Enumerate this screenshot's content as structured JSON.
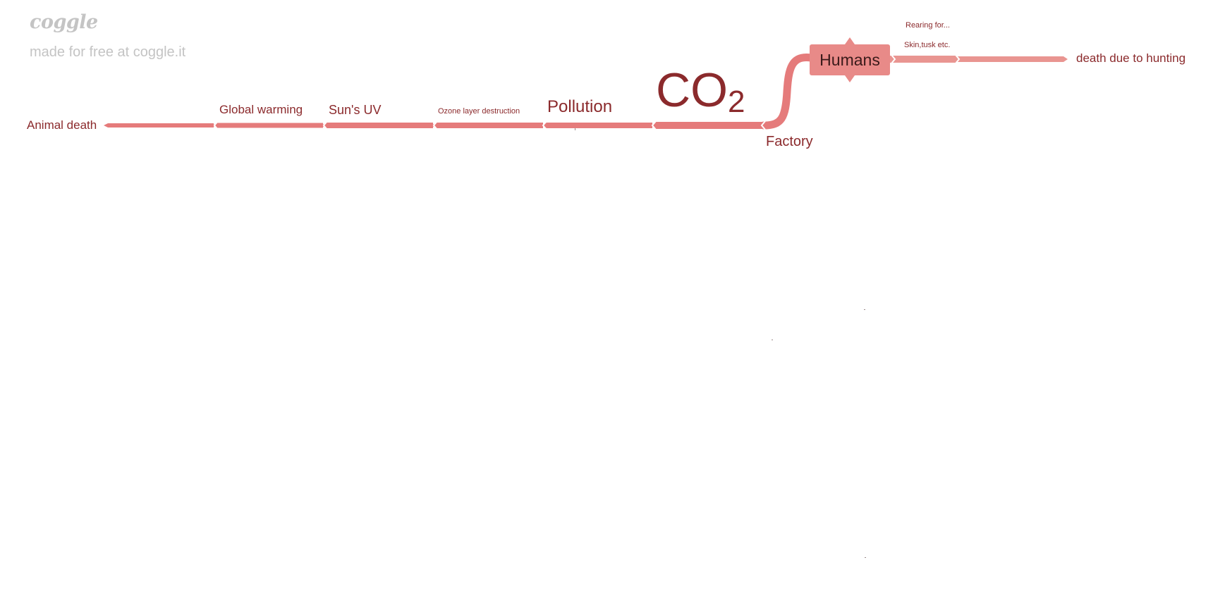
{
  "brand": {
    "logo_text": "coggle",
    "tagline": "made for free at coggle.it"
  },
  "colors": {
    "branch": "#e57b7b",
    "branch_light": "#e99591",
    "node_fill": "#e88a88",
    "text": "#8b2a2c",
    "root_text": "#3a1a1a",
    "brand_text": "#c4c4c4"
  },
  "root": {
    "label": "Humans"
  },
  "branches": {
    "factory": "Factory",
    "co2": {
      "main": "CO",
      "sub": "2"
    },
    "pollution": "Pollution",
    "ozone": "Ozone layer destruction",
    "sun_uv": "Sun's UV",
    "global_warming": "Global warming",
    "animal_death": "Animal death",
    "rearing": "Rearing for...",
    "skin_tusk": "Skin,tusk etc.",
    "death_hunting": "death due to hunting"
  }
}
